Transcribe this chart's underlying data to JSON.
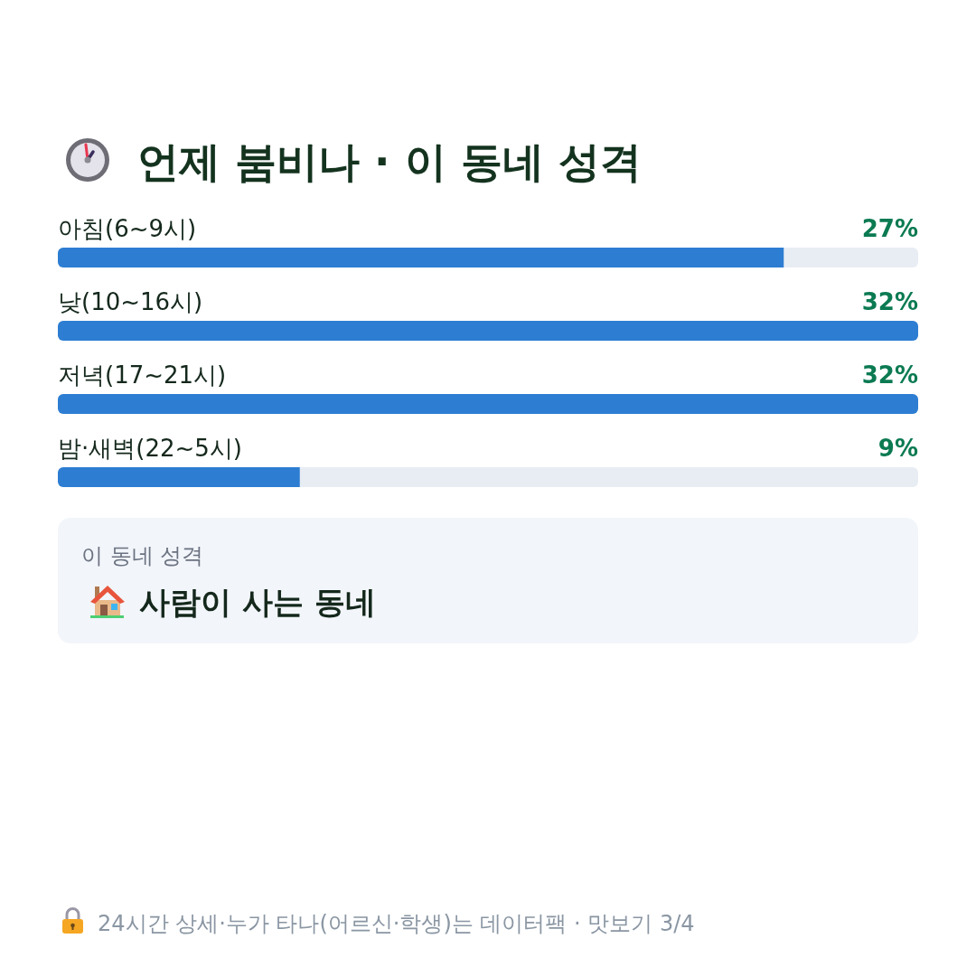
{
  "chart_data": {
    "type": "bar",
    "orientation": "horizontal",
    "title": "언제 붐비나 · 이 동네 성격",
    "categories": [
      "아침(6~9시)",
      "낮(10~16시)",
      "저녁(17~21시)",
      "밤·새벽(22~5시)"
    ],
    "values": [
      27,
      32,
      32,
      9
    ],
    "value_labels": [
      "27%",
      "32%",
      "32%",
      "9%"
    ],
    "color": "#2d7dd2",
    "annotations": [
      "이 동네 성격",
      "사람이 사는 동네",
      "24시간 상세·누가 타나(어르신·학생)는 데이터팩 · 맛보기 3/4"
    ]
  }
}
